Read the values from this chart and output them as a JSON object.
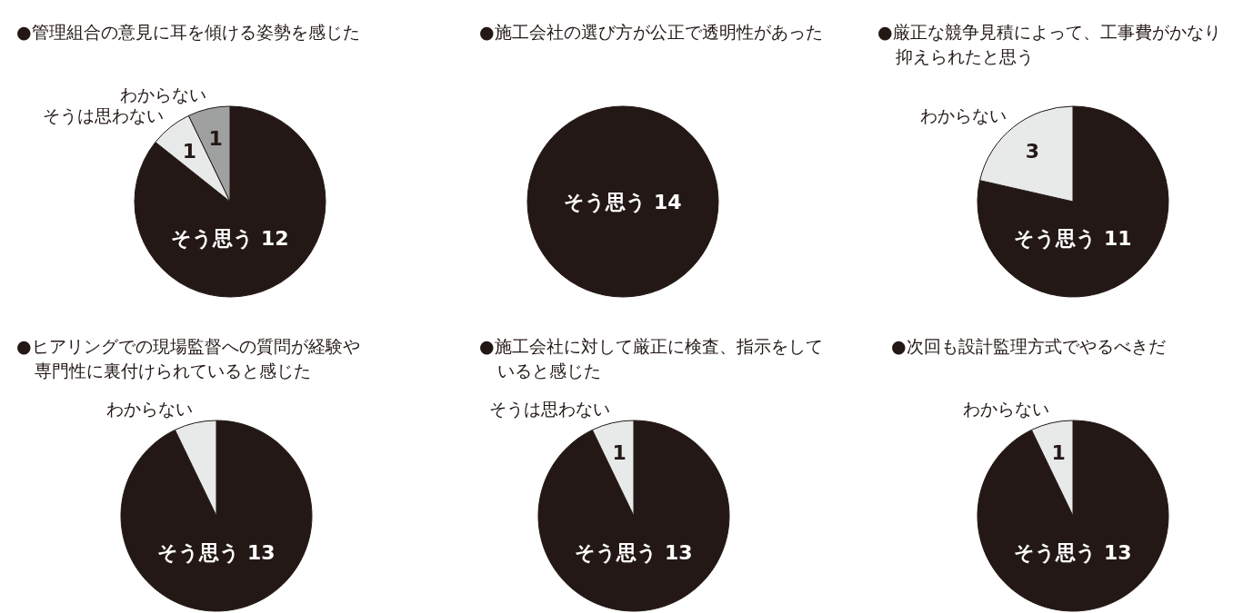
{
  "chart_data": [
    {
      "type": "pie",
      "title": "●管理組合の意見に耳を傾ける姿勢を感じた",
      "categories": [
        "そう思う",
        "そうは思わない",
        "わからない"
      ],
      "values": [
        12,
        1,
        1
      ],
      "colors": [
        "#231815",
        "#e8e9e9",
        "#9fa0a0"
      ],
      "value_labels": [
        "12",
        "1",
        "1"
      ]
    },
    {
      "type": "pie",
      "title": "●施工会社の選び方が公正で透明性があった",
      "categories": [
        "そう思う"
      ],
      "values": [
        14
      ],
      "colors": [
        "#231815"
      ],
      "value_labels": [
        "14"
      ]
    },
    {
      "type": "pie",
      "title": "●厳正な競争見積によって、工事費がかなり抑えられたと思う",
      "categories": [
        "そう思う",
        "わからない"
      ],
      "values": [
        11,
        3
      ],
      "colors": [
        "#231815",
        "#e8e9e9"
      ],
      "value_labels": [
        "11",
        "3"
      ]
    },
    {
      "type": "pie",
      "title": "●ヒアリングでの現場監督への質問が経験や専門性に裏付けられていると感じた",
      "categories": [
        "そう思う",
        "わからない"
      ],
      "values": [
        13,
        1
      ],
      "colors": [
        "#231815",
        "#e8e9e9"
      ],
      "value_labels": [
        "13",
        null
      ]
    },
    {
      "type": "pie",
      "title": "●施工会社に対して厳正に検査、指示をしていると感じた",
      "categories": [
        "そう思う",
        "そうは思わない"
      ],
      "values": [
        13,
        1
      ],
      "colors": [
        "#231815",
        "#e8e9e9"
      ],
      "value_labels": [
        "13",
        "1"
      ]
    },
    {
      "type": "pie",
      "title": "●次回も設計監理方式でやるべきだ",
      "categories": [
        "そう思う",
        "わからない"
      ],
      "values": [
        13,
        1
      ],
      "colors": [
        "#231815",
        "#e8e9e9"
      ],
      "value_labels": [
        "13",
        "1"
      ]
    }
  ]
}
